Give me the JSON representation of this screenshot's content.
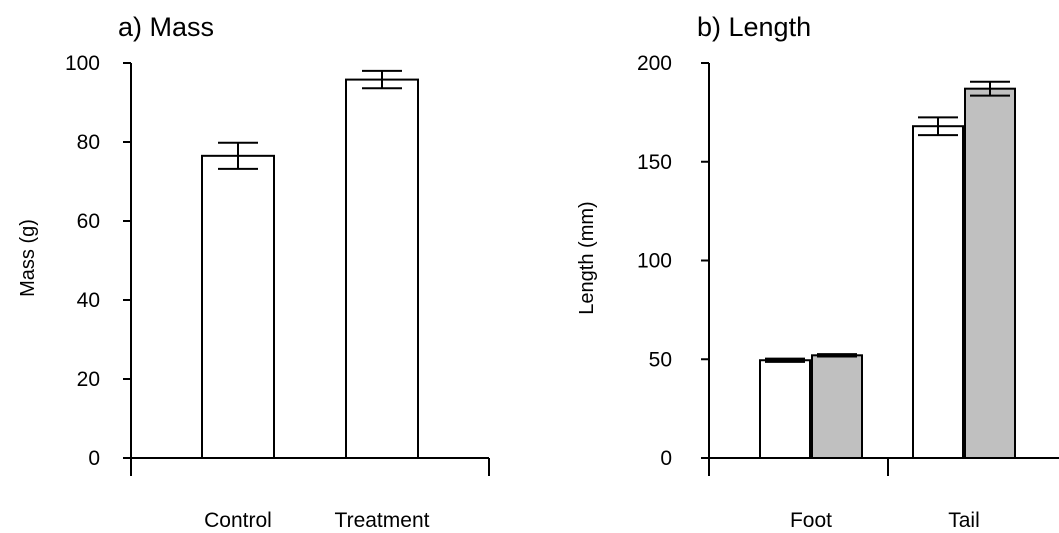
{
  "colors": {
    "control_fill": "#ffffff",
    "treatment_fill": "#c0c0c0",
    "stroke": "#000000"
  },
  "chart_data": [
    {
      "type": "bar",
      "title": "a) Mass",
      "xlabel": "",
      "ylabel": "Mass (g)",
      "categories": [
        "Control",
        "Treatment"
      ],
      "series": [
        {
          "values": [
            76.5,
            95.8
          ],
          "error": [
            3.3,
            2.2
          ]
        }
      ],
      "ylim": [
        0,
        100
      ],
      "yticks": [
        0,
        20,
        40,
        60,
        80,
        100
      ],
      "grid": false
    },
    {
      "type": "bar",
      "title": "b) Length",
      "xlabel": "",
      "ylabel": "Length (mm)",
      "categories": [
        "Foot",
        "Tail"
      ],
      "series": [
        {
          "values": [
            49.5,
            168.0
          ],
          "error": [
            0.8,
            4.5
          ]
        },
        {
          "values": [
            52.0,
            187.0
          ],
          "error": [
            0.6,
            3.5
          ]
        }
      ],
      "ylim": [
        0,
        200
      ],
      "yticks": [
        0,
        50,
        100,
        150,
        200
      ],
      "grid": false
    }
  ]
}
